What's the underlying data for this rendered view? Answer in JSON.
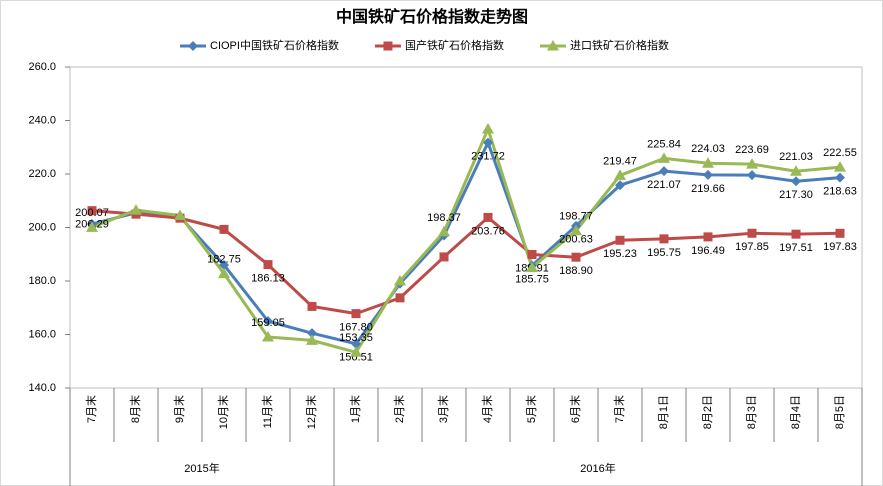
{
  "chart_data": {
    "type": "line",
    "title": "中国铁矿石价格指数走势图",
    "categories": [
      "7月末",
      "8月末",
      "9月末",
      "10月末",
      "11月末",
      "12月末",
      "1月末",
      "2月末",
      "3月末",
      "4月末",
      "5月末",
      "6月末",
      "7月末",
      "8月1日",
      "8月2日",
      "8月3日",
      "8月4日",
      "8月5日"
    ],
    "groups": [
      {
        "label": "2015年",
        "count": 6
      },
      {
        "label": "2016年",
        "count": 12
      }
    ],
    "ylim": [
      140,
      260
    ],
    "yticks": [
      {
        "value": 140,
        "label": "140.0"
      },
      {
        "value": 160,
        "label": "160.0"
      },
      {
        "value": 180,
        "label": "180.0"
      },
      {
        "value": 200,
        "label": "200.0"
      },
      {
        "value": 220,
        "label": "220.0"
      },
      {
        "value": 240,
        "label": "240.0"
      },
      {
        "value": 260,
        "label": "260.0"
      }
    ],
    "legend": "top",
    "series": [
      {
        "name": "CIOPI中国铁矿石价格指数",
        "color": "#4a7ebb",
        "marker": "diamond",
        "values": [
          201.29,
          205.5,
          204.0,
          186.0,
          165.0,
          160.5,
          156.51,
          179.0,
          197.0,
          231.72,
          185.75,
          200.63,
          215.8,
          221.07,
          219.66,
          219.6,
          217.3,
          218.63
        ],
        "value_labels": [
          null,
          null,
          null,
          null,
          null,
          null,
          "156.51",
          null,
          null,
          "231.72",
          "185.75",
          "200.63",
          null,
          "221.07",
          "219.66",
          null,
          "217.30",
          "218.63"
        ]
      },
      {
        "name": "国产铁矿石价格指数",
        "color": "#be4b48",
        "marker": "square",
        "values": [
          206.29,
          205.0,
          203.5,
          199.3,
          186.13,
          170.5,
          167.8,
          173.7,
          189.0,
          203.76,
          189.91,
          188.9,
          195.23,
          195.75,
          196.49,
          197.85,
          197.51,
          197.83
        ],
        "value_labels": [
          "206.29",
          null,
          null,
          null,
          "186.13",
          null,
          "167.80",
          null,
          null,
          "203.76",
          "189.91",
          "188.90",
          "195.23",
          "195.75",
          "196.49",
          "197.85",
          "197.51",
          "197.83"
        ]
      },
      {
        "name": "进口铁矿石价格指数",
        "color": "#98b954",
        "marker": "triangle",
        "values": [
          200.07,
          206.5,
          204.5,
          182.75,
          159.05,
          157.8,
          153.35,
          180.0,
          198.37,
          236.8,
          185.0,
          198.77,
          219.47,
          225.84,
          224.03,
          223.69,
          221.03,
          222.55
        ],
        "value_labels": [
          "200.07",
          null,
          null,
          "182.75",
          "159.05",
          null,
          "153.35",
          null,
          "198.37",
          null,
          null,
          "198.77",
          "219.47",
          "225.84",
          "224.03",
          "223.69",
          "221.03",
          "222.55"
        ]
      }
    ]
  }
}
